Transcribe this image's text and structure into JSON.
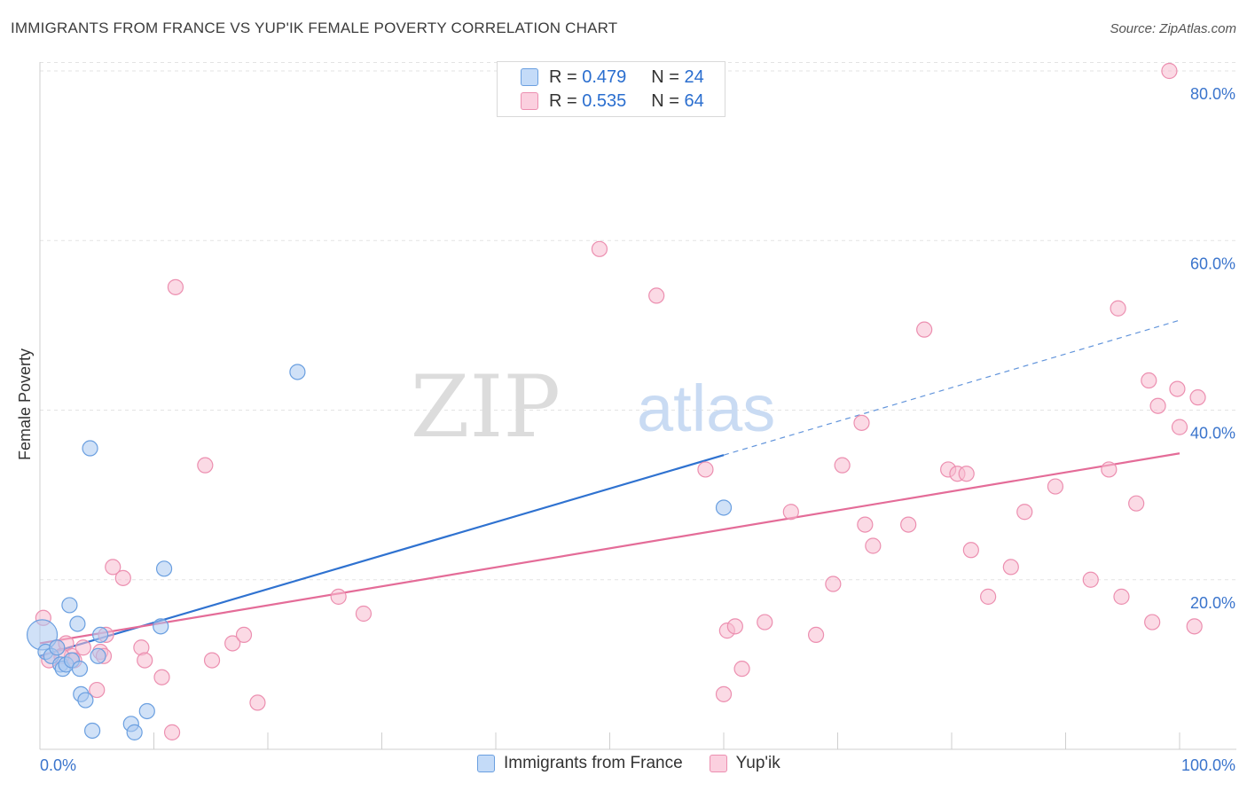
{
  "title": "IMMIGRANTS FROM FRANCE VS YUP'IK FEMALE POVERTY CORRELATION CHART",
  "source": "Source: ZipAtlas.com",
  "watermark": {
    "zip": "ZIP",
    "atlas": "atlas"
  },
  "colors": {
    "blue_fill": "#a9c8f0",
    "blue_stroke": "#6a9fe0",
    "blue_line": "#2f72d0",
    "pink_fill": "#f7bcd0",
    "pink_stroke": "#ec8fb0",
    "pink_line": "#e46c98",
    "axis_text": "#3a74cc",
    "grid": "#e3e3e3"
  },
  "legend": {
    "rows": [
      {
        "r_label": "R = ",
        "r_value": "0.479",
        "n_label": "N = ",
        "n_value": "24"
      },
      {
        "r_label": "R = ",
        "r_value": "0.535",
        "n_label": "N = ",
        "n_value": "64"
      }
    ]
  },
  "bottom_legend": [
    "Immigrants from France",
    "Yup'ik"
  ],
  "chart_data": {
    "type": "scatter",
    "ylabel": "Female Poverty",
    "x_tick_labels": [
      "0.0%",
      "100.0%"
    ],
    "y_tick_labels": [
      "20.0%",
      "40.0%",
      "60.0%",
      "80.0%"
    ],
    "y_ticks": [
      20,
      40,
      60,
      80
    ],
    "xlim": [
      0,
      100
    ],
    "ylim": [
      0,
      82
    ],
    "grid": true,
    "legend_position": "top-center",
    "series": [
      {
        "name": "Immigrants from France",
        "color": "#a9c8f0",
        "points": [
          [
            0.2,
            13.5
          ],
          [
            0.5,
            11.5
          ],
          [
            1.0,
            11.0
          ],
          [
            1.5,
            12.0
          ],
          [
            1.8,
            10.0
          ],
          [
            2.0,
            9.5
          ],
          [
            2.3,
            10.0
          ],
          [
            2.6,
            17.0
          ],
          [
            2.8,
            10.5
          ],
          [
            3.3,
            14.8
          ],
          [
            3.5,
            9.5
          ],
          [
            3.6,
            6.5
          ],
          [
            4.0,
            5.8
          ],
          [
            4.4,
            35.5
          ],
          [
            4.6,
            2.2
          ],
          [
            5.1,
            11.0
          ],
          [
            5.3,
            13.5
          ],
          [
            8.0,
            3.0
          ],
          [
            8.3,
            2.0
          ],
          [
            9.4,
            4.5
          ],
          [
            10.6,
            14.5
          ],
          [
            10.9,
            21.3
          ],
          [
            22.6,
            44.5
          ],
          [
            60.0,
            28.5
          ]
        ],
        "fit": {
          "x0": 0,
          "y0": 11.0,
          "x1": 60,
          "y1": 34.7,
          "dashed_to_x": 100,
          "dashed_to_y": 50.6
        }
      },
      {
        "name": "Yup'ik",
        "color": "#f7bcd0",
        "points": [
          [
            0.3,
            15.5
          ],
          [
            0.8,
            10.5
          ],
          [
            1.5,
            12.0
          ],
          [
            2.3,
            12.5
          ],
          [
            2.8,
            11.0
          ],
          [
            3.0,
            10.5
          ],
          [
            3.8,
            12.0
          ],
          [
            5.0,
            7.0
          ],
          [
            5.3,
            11.5
          ],
          [
            5.8,
            13.5
          ],
          [
            5.6,
            11.0
          ],
          [
            6.4,
            21.5
          ],
          [
            7.3,
            20.2
          ],
          [
            8.9,
            12.0
          ],
          [
            9.2,
            10.5
          ],
          [
            10.7,
            8.5
          ],
          [
            11.6,
            2.0
          ],
          [
            11.9,
            54.5
          ],
          [
            14.5,
            33.5
          ],
          [
            15.1,
            10.5
          ],
          [
            16.9,
            12.5
          ],
          [
            17.9,
            13.5
          ],
          [
            19.1,
            5.5
          ],
          [
            26.2,
            18.0
          ],
          [
            28.4,
            16.0
          ],
          [
            49.1,
            59.0
          ],
          [
            54.1,
            53.5
          ],
          [
            58.4,
            33.0
          ],
          [
            60.0,
            6.5
          ],
          [
            60.3,
            14.0
          ],
          [
            61.0,
            14.5
          ],
          [
            61.6,
            9.5
          ],
          [
            63.6,
            15.0
          ],
          [
            65.9,
            28.0
          ],
          [
            68.1,
            13.5
          ],
          [
            69.6,
            19.5
          ],
          [
            70.4,
            33.5
          ],
          [
            72.1,
            38.5
          ],
          [
            72.4,
            26.5
          ],
          [
            73.1,
            24.0
          ],
          [
            76.2,
            26.5
          ],
          [
            77.6,
            49.5
          ],
          [
            79.7,
            33.0
          ],
          [
            80.5,
            32.5
          ],
          [
            81.3,
            32.5
          ],
          [
            81.7,
            23.5
          ],
          [
            83.2,
            18.0
          ],
          [
            85.2,
            21.5
          ],
          [
            86.4,
            28.0
          ],
          [
            89.1,
            31.0
          ],
          [
            92.2,
            20.0
          ],
          [
            93.8,
            33.0
          ],
          [
            94.6,
            52.0
          ],
          [
            94.9,
            18.0
          ],
          [
            96.2,
            29.0
          ],
          [
            97.3,
            43.5
          ],
          [
            97.6,
            15.0
          ],
          [
            98.1,
            40.5
          ],
          [
            99.1,
            80.0
          ],
          [
            99.8,
            42.5
          ],
          [
            100.0,
            38.0
          ],
          [
            101.3,
            14.5
          ],
          [
            101.6,
            41.5
          ],
          [
            1.9,
            11.0
          ]
        ],
        "fit": {
          "x0": 0,
          "y0": 12.5,
          "x1": 100,
          "y1": 34.9
        }
      }
    ]
  }
}
